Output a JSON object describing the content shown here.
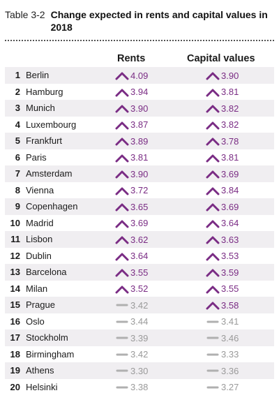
{
  "header": {
    "table_label": "Table 3-2",
    "title": "Change expected in rents and capital values in 2018"
  },
  "columns": {
    "rents": "Rents",
    "capital": "Capital values"
  },
  "rows": [
    {
      "rank": "1",
      "city": "Berlin",
      "rents": "4.09",
      "rents_trend": "up",
      "capital": "3.90",
      "capital_trend": "up"
    },
    {
      "rank": "2",
      "city": "Hamburg",
      "rents": "3.94",
      "rents_trend": "up",
      "capital": "3.81",
      "capital_trend": "up"
    },
    {
      "rank": "3",
      "city": "Munich",
      "rents": "3.90",
      "rents_trend": "up",
      "capital": "3.82",
      "capital_trend": "up"
    },
    {
      "rank": "4",
      "city": "Luxembourg",
      "rents": "3.87",
      "rents_trend": "up",
      "capital": "3.82",
      "capital_trend": "up"
    },
    {
      "rank": "5",
      "city": "Frankfurt",
      "rents": "3.89",
      "rents_trend": "up",
      "capital": "3.78",
      "capital_trend": "up"
    },
    {
      "rank": "6",
      "city": "Paris",
      "rents": "3.81",
      "rents_trend": "up",
      "capital": "3.81",
      "capital_trend": "up"
    },
    {
      "rank": "7",
      "city": "Amsterdam",
      "rents": "3.90",
      "rents_trend": "up",
      "capital": "3.69",
      "capital_trend": "up"
    },
    {
      "rank": "8",
      "city": "Vienna",
      "rents": "3.72",
      "rents_trend": "up",
      "capital": "3.84",
      "capital_trend": "up"
    },
    {
      "rank": "9",
      "city": "Copenhagen",
      "rents": "3.65",
      "rents_trend": "up",
      "capital": "3.69",
      "capital_trend": "up"
    },
    {
      "rank": "10",
      "city": "Madrid",
      "rents": "3.69",
      "rents_trend": "up",
      "capital": "3.64",
      "capital_trend": "up"
    },
    {
      "rank": "11",
      "city": "Lisbon",
      "rents": "3.62",
      "rents_trend": "up",
      "capital": "3.63",
      "capital_trend": "up"
    },
    {
      "rank": "12",
      "city": "Dublin",
      "rents": "3.64",
      "rents_trend": "up",
      "capital": "3.53",
      "capital_trend": "up"
    },
    {
      "rank": "13",
      "city": "Barcelona",
      "rents": "3.55",
      "rents_trend": "up",
      "capital": "3.59",
      "capital_trend": "up"
    },
    {
      "rank": "14",
      "city": "Milan",
      "rents": "3.52",
      "rents_trend": "up",
      "capital": "3.55",
      "capital_trend": "up"
    },
    {
      "rank": "15",
      "city": "Prague",
      "rents": "3.42",
      "rents_trend": "flat",
      "capital": "3.58",
      "capital_trend": "up"
    },
    {
      "rank": "16",
      "city": "Oslo",
      "rents": "3.44",
      "rents_trend": "flat",
      "capital": "3.41",
      "capital_trend": "flat"
    },
    {
      "rank": "17",
      "city": "Stockholm",
      "rents": "3.39",
      "rents_trend": "flat",
      "capital": "3.46",
      "capital_trend": "flat"
    },
    {
      "rank": "18",
      "city": "Birmingham",
      "rents": "3.42",
      "rents_trend": "flat",
      "capital": "3.33",
      "capital_trend": "flat"
    },
    {
      "rank": "19",
      "city": "Athens",
      "rents": "3.30",
      "rents_trend": "flat",
      "capital": "3.36",
      "capital_trend": "flat"
    },
    {
      "rank": "20",
      "city": "Helsinki",
      "rents": "3.38",
      "rents_trend": "flat",
      "capital": "3.27",
      "capital_trend": "flat"
    }
  ],
  "colors": {
    "up": "#7a2c84",
    "flat": "#b0b0b0",
    "stripe": "#f0eef1"
  },
  "icons": {
    "up": "chevron-up-icon",
    "flat": "dash-icon"
  }
}
